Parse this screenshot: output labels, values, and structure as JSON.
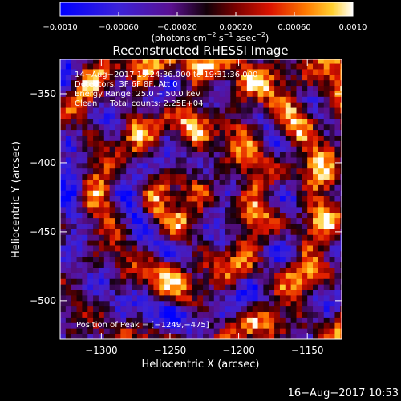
{
  "chart_data": {
    "type": "heatmap",
    "title": "Reconstructed RHESSI Image",
    "xlabel": "Heliocentric X (arcsec)",
    "ylabel": "Heliocentric Y (arcsec)",
    "xlim": [
      -1330,
      -1125
    ],
    "ylim": [
      -528,
      -325
    ],
    "xticks": [
      -1300,
      -1250,
      -1200,
      -1150
    ],
    "yticks": [
      -350,
      -400,
      -450,
      -500
    ],
    "xtick_labels": [
      "−1300",
      "−1250",
      "−1200",
      "−1150"
    ],
    "ytick_labels": [
      "−350",
      "−400",
      "−450",
      "−500"
    ],
    "colorbar": {
      "min": -0.001,
      "max": 0.001,
      "ticks": [
        -0.001,
        -0.0006,
        -0.0002,
        0.0002,
        0.0006,
        0.001
      ],
      "tick_labels": [
        "−0.0010",
        "−0.00060",
        "−0.00020",
        "0.00020",
        "0.00060",
        "0.0010"
      ],
      "label_prefix": "(photons cm",
      "label_exp1": "−2",
      "label_mid1": " s",
      "label_exp2": "−1",
      "label_mid2": " asec",
      "label_exp3": "−2",
      "label_suffix": ")",
      "colormap": "std-gamma-II"
    },
    "info_lines": [
      "14−Aug−2017 19:24:36.000 to 19:31:36.000",
      "Detectors: 3F 6F 8F, Att 0",
      "Energy Range: 25.0 − 50.0 keV",
      "Clean     Total counts: 2.25E+04"
    ],
    "peak_label": "Position of Peak = [−1249,−475]",
    "peak": [
      -1249,
      -475
    ],
    "pixel_size_arcsec": 4,
    "grid": false
  },
  "footer": {
    "timestamp": "16−Aug−2017 10:53"
  }
}
